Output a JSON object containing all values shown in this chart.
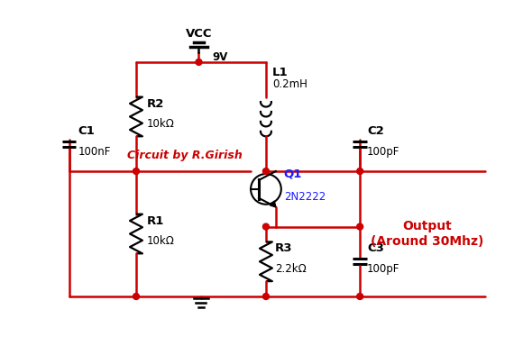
{
  "bg_color": "#ffffff",
  "wire_color": "#cc0000",
  "component_color": "#000000",
  "label_color_blue": "#1a1aff",
  "label_color_red": "#cc0000",
  "vcc_label": "VCC",
  "vcc_voltage": "9V",
  "L1_label": "L1",
  "L1_value": "0.2mH",
  "R2_label": "R2",
  "R2_value": "10kΩ",
  "R1_label": "R1",
  "R1_value": "10kΩ",
  "R3_label": "R3",
  "R3_value": "2.2kΩ",
  "C1_label": "C1",
  "C1_value": "100nF",
  "C2_label": "C2",
  "C2_value": "100pF",
  "C3_label": "C3",
  "C3_value": "100pF",
  "Q1_label": "Q1",
  "Q1_value": "2N2222",
  "circuit_by": "Circuit by R.Girish",
  "output_label": "Output\n(Around 30Mhz)"
}
